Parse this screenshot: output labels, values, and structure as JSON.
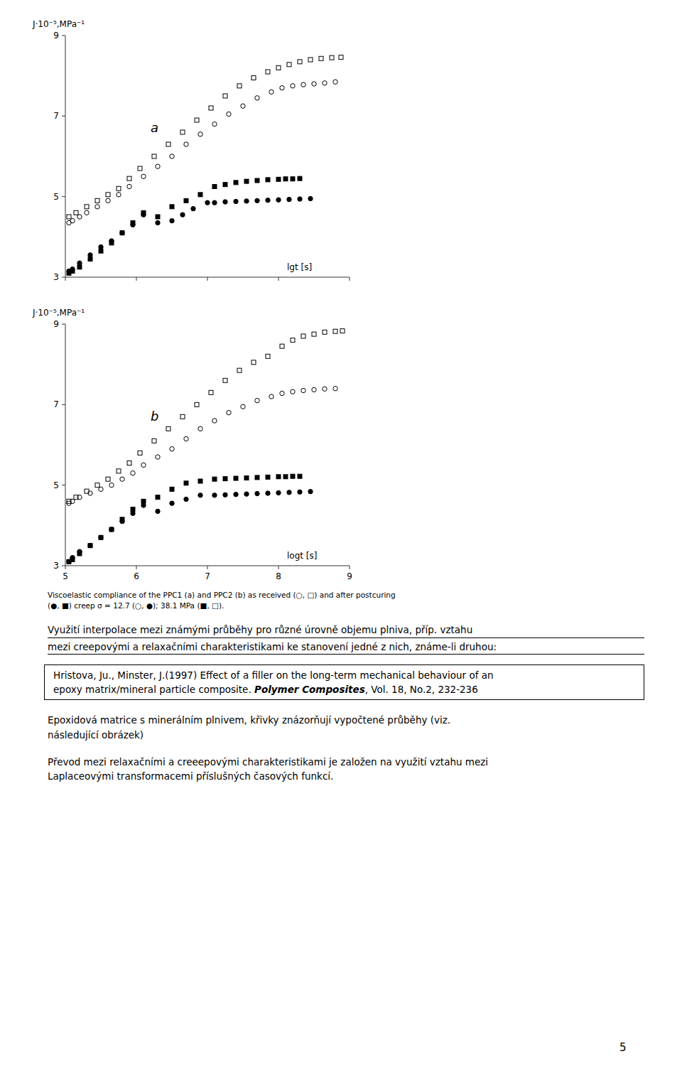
{
  "chart_data": [
    {
      "type": "scatter",
      "annotation": "a",
      "xlabel": "lgt [s]",
      "ylabel": "J·10⁻⁵,MPa⁻¹",
      "xlim": [
        5,
        9
      ],
      "ylim": [
        3,
        9
      ],
      "xticks": [
        5,
        6,
        7,
        8,
        9
      ],
      "yticks": [
        3,
        5,
        7,
        9
      ],
      "grid": false,
      "tick_labels": "y",
      "series": [
        {
          "marker": "circle-open",
          "color": "black",
          "x": [
            5.05,
            5.1,
            5.2,
            5.3,
            5.45,
            5.6,
            5.75,
            5.9,
            6.1,
            6.3,
            6.5,
            6.7,
            6.9,
            7.1,
            7.3,
            7.5,
            7.7,
            7.9,
            8.05,
            8.2,
            8.35,
            8.5,
            8.65,
            8.8
          ],
          "values": [
            4.35,
            4.4,
            4.5,
            4.6,
            4.75,
            4.9,
            5.05,
            5.25,
            5.5,
            5.75,
            6.0,
            6.3,
            6.55,
            6.8,
            7.05,
            7.25,
            7.45,
            7.6,
            7.7,
            7.75,
            7.78,
            7.8,
            7.82,
            7.85
          ]
        },
        {
          "marker": "square-open",
          "color": "black",
          "x": [
            5.05,
            5.15,
            5.3,
            5.45,
            5.6,
            5.75,
            5.9,
            6.05,
            6.25,
            6.45,
            6.65,
            6.85,
            7.05,
            7.25,
            7.45,
            7.65,
            7.85,
            8.0,
            8.15,
            8.3,
            8.45,
            8.6,
            8.75,
            8.88
          ],
          "values": [
            4.5,
            4.6,
            4.75,
            4.9,
            5.05,
            5.2,
            5.45,
            5.7,
            6.0,
            6.3,
            6.6,
            6.9,
            7.2,
            7.5,
            7.75,
            7.95,
            8.1,
            8.2,
            8.28,
            8.35,
            8.4,
            8.43,
            8.45,
            8.46
          ]
        },
        {
          "marker": "circle",
          "color": "black",
          "x": [
            5.05,
            5.1,
            5.2,
            5.35,
            5.5,
            5.65,
            5.8,
            5.95,
            6.1,
            6.3,
            6.5,
            6.65,
            6.8,
            7.0,
            7.1,
            7.25,
            7.4,
            7.55,
            7.7,
            7.85,
            8.0,
            8.15,
            8.3,
            8.45
          ],
          "values": [
            3.15,
            3.2,
            3.35,
            3.55,
            3.75,
            3.9,
            4.1,
            4.3,
            4.55,
            4.35,
            4.4,
            4.55,
            4.7,
            4.85,
            4.85,
            4.87,
            4.88,
            4.89,
            4.9,
            4.91,
            4.92,
            4.93,
            4.94,
            4.95
          ]
        },
        {
          "marker": "square",
          "color": "black",
          "x": [
            5.05,
            5.1,
            5.2,
            5.35,
            5.5,
            5.65,
            5.8,
            5.95,
            6.1,
            6.3,
            6.5,
            6.7,
            6.9,
            7.1,
            7.25,
            7.4,
            7.55,
            7.7,
            7.85,
            8.0,
            8.1,
            8.2,
            8.3
          ],
          "values": [
            3.1,
            3.15,
            3.25,
            3.45,
            3.65,
            3.85,
            4.1,
            4.35,
            4.6,
            4.5,
            4.75,
            4.9,
            5.05,
            5.25,
            5.3,
            5.35,
            5.38,
            5.4,
            5.42,
            5.43,
            5.44,
            5.44,
            5.45
          ]
        }
      ]
    },
    {
      "type": "scatter",
      "annotation": "b",
      "xlabel": "logt [s]",
      "ylabel": "J·10⁻⁵,MPa⁻¹",
      "xlim": [
        5,
        9
      ],
      "ylim": [
        3,
        9
      ],
      "xticks": [
        5,
        6,
        7,
        8,
        9
      ],
      "yticks": [
        3,
        5,
        7,
        9
      ],
      "grid": false,
      "tick_labels": true,
      "series": [
        {
          "marker": "circle-open",
          "color": "black",
          "x": [
            5.05,
            5.1,
            5.2,
            5.35,
            5.5,
            5.65,
            5.8,
            5.95,
            6.1,
            6.3,
            6.5,
            6.7,
            6.9,
            7.1,
            7.3,
            7.5,
            7.7,
            7.9,
            8.05,
            8.2,
            8.35,
            8.5,
            8.65,
            8.8
          ],
          "values": [
            4.55,
            4.6,
            4.7,
            4.8,
            4.9,
            5.0,
            5.15,
            5.3,
            5.5,
            5.7,
            5.9,
            6.15,
            6.4,
            6.6,
            6.8,
            6.95,
            7.1,
            7.2,
            7.28,
            7.32,
            7.35,
            7.37,
            7.39,
            7.4
          ]
        },
        {
          "marker": "square-open",
          "color": "black",
          "x": [
            5.05,
            5.15,
            5.3,
            5.45,
            5.6,
            5.75,
            5.9,
            6.05,
            6.25,
            6.45,
            6.65,
            6.85,
            7.05,
            7.25,
            7.45,
            7.65,
            7.85,
            8.05,
            8.2,
            8.35,
            8.5,
            8.65,
            8.8,
            8.9
          ],
          "values": [
            4.6,
            4.7,
            4.85,
            5.0,
            5.15,
            5.35,
            5.55,
            5.8,
            6.1,
            6.4,
            6.7,
            7.0,
            7.3,
            7.6,
            7.85,
            8.05,
            8.2,
            8.45,
            8.6,
            8.7,
            8.75,
            8.8,
            8.82,
            8.83
          ]
        },
        {
          "marker": "circle",
          "color": "black",
          "x": [
            5.05,
            5.1,
            5.2,
            5.35,
            5.5,
            5.65,
            5.8,
            5.95,
            6.1,
            6.3,
            6.5,
            6.7,
            6.9,
            7.1,
            7.25,
            7.4,
            7.55,
            7.7,
            7.85,
            8.0,
            8.15,
            8.3,
            8.45
          ],
          "values": [
            3.1,
            3.2,
            3.35,
            3.5,
            3.7,
            3.9,
            4.1,
            4.3,
            4.5,
            4.35,
            4.55,
            4.65,
            4.75,
            4.75,
            4.76,
            4.77,
            4.78,
            4.79,
            4.8,
            4.81,
            4.82,
            4.83,
            4.84
          ]
        },
        {
          "marker": "square",
          "color": "black",
          "x": [
            5.05,
            5.1,
            5.2,
            5.35,
            5.5,
            5.65,
            5.8,
            5.95,
            6.1,
            6.3,
            6.5,
            6.7,
            6.9,
            7.1,
            7.25,
            7.4,
            7.55,
            7.7,
            7.85,
            8.0,
            8.1,
            8.2,
            8.3
          ],
          "values": [
            3.1,
            3.15,
            3.3,
            3.5,
            3.7,
            3.9,
            4.15,
            4.4,
            4.6,
            4.7,
            4.9,
            5.05,
            5.1,
            5.15,
            5.16,
            5.17,
            5.18,
            5.19,
            5.2,
            5.21,
            5.21,
            5.22,
            5.22
          ]
        }
      ]
    }
  ],
  "page_text": {
    "caption": [
      "Viscoelastic compliance of the PPC1 (a) and PPC2 (b) as received (○, □) and after postcuring",
      "(●, ■) creep σ = 12.7 (○, ●); 38.1 MPa (■, □)."
    ],
    "heading": [
      "Využití interpolace mezi známými průběhy pro různé úrovně objemu plniva, příp. vztahu",
      "mezi creepovými a relaxačními charakteristikami ke stanovení jedné z nich, známe-li druhou:"
    ],
    "reference_line1": "Hristova, Ju., Minster, J.(1997) Effect of a filler on the long-term mechanical behaviour of an",
    "reference_line2": [
      "epoxy matrix/mineral particle composite. ",
      "Polymer Composites",
      ", Vol. 18, No.2, 232-236"
    ],
    "paragraphs": [
      [
        "Epoxidová matrice s minerálním plnivem, křivky znázorňují vypočtené průběhy (viz.",
        "následující obrázek)"
      ],
      [
        "Převod mezi relaxačními a creeepovými charakteristikami je založen na využití vztahu mezi",
        "Laplaceovými transformacemi příslušných časových funkcí."
      ]
    ],
    "page_number": "5"
  }
}
